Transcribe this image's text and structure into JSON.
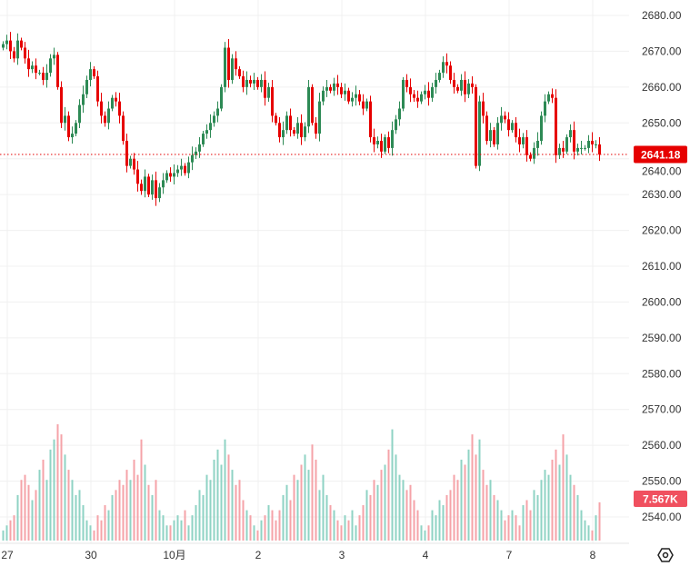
{
  "chart_data": {
    "type": "candlestick",
    "title": "",
    "y_ticks": [
      "2680.00",
      "2670.00",
      "2660.00",
      "2650.00",
      "2640.00",
      "2630.00",
      "2620.00",
      "2610.00",
      "2600.00",
      "2590.00",
      "2580.00",
      "2570.00",
      "2560.00",
      "2550.00",
      "2540.00"
    ],
    "ylim": [
      2540,
      2680
    ],
    "x_ticks": [
      {
        "label": "27",
        "bar": 1.5
      },
      {
        "label": "30",
        "bar": 24.5
      },
      {
        "label": "10月",
        "bar": 47.5
      },
      {
        "label": "2",
        "bar": 70.5
      },
      {
        "label": "3",
        "bar": 93.5
      },
      {
        "label": "4",
        "bar": 116.5
      },
      {
        "label": "7",
        "bar": 139.5
      },
      {
        "label": "8",
        "bar": 162.5
      }
    ],
    "last_price": 2641.18,
    "last_price_label": "2641.18",
    "last_volume_label": "7.567K",
    "closes": [
      2672,
      2673,
      2670,
      2668,
      2673,
      2671,
      2668,
      2665,
      2666,
      2664,
      2664,
      2662,
      2664,
      2668,
      2669,
      2660,
      2650,
      2652,
      2646,
      2647,
      2650,
      2655,
      2658,
      2662,
      2665,
      2663,
      2656,
      2652,
      2650,
      2654,
      2657,
      2656,
      2652,
      2645,
      2638,
      2640,
      2637,
      2633,
      2631,
      2635,
      2630,
      2634,
      2629,
      2632,
      2634,
      2636,
      2635,
      2636,
      2637,
      2638,
      2636,
      2639,
      2641,
      2642,
      2644,
      2647,
      2648,
      2650,
      2652,
      2654,
      2660,
      2671,
      2662,
      2668,
      2665,
      2663,
      2660,
      2662,
      2661,
      2662,
      2660,
      2662,
      2657,
      2660,
      2652,
      2650,
      2646,
      2648,
      2652,
      2648,
      2647,
      2650,
      2646,
      2649,
      2660,
      2650,
      2647,
      2656,
      2659,
      2660,
      2659,
      2661,
      2660,
      2658,
      2659,
      2656,
      2657,
      2658,
      2656,
      2654,
      2656,
      2646,
      2644,
      2645,
      2642,
      2646,
      2643,
      2648,
      2651,
      2654,
      2662,
      2660,
      2658,
      2657,
      2656,
      2658,
      2659,
      2657,
      2660,
      2662,
      2664,
      2667,
      2666,
      2662,
      2660,
      2659,
      2662,
      2658,
      2661,
      2660,
      2638,
      2656,
      2652,
      2645,
      2648,
      2644,
      2650,
      2652,
      2651,
      2648,
      2650,
      2646,
      2644,
      2646,
      2641,
      2640,
      2643,
      2645,
      2652,
      2656,
      2658,
      2657,
      2641,
      2643,
      2642,
      2646,
      2648,
      2642,
      2643,
      2643,
      2643,
      2645,
      2644,
      2644,
      2641.18
    ],
    "volumes_k": [
      2,
      3,
      4,
      5,
      9,
      12,
      13,
      11,
      8,
      10,
      14,
      16,
      12,
      18,
      20,
      23,
      21,
      17,
      14,
      12,
      9,
      10,
      7,
      4,
      3,
      2,
      5,
      4,
      7,
      6,
      9,
      10,
      12,
      11,
      14,
      12,
      16,
      13,
      20,
      15,
      11,
      9,
      12,
      6,
      5,
      3,
      3,
      4,
      5,
      4,
      6,
      3,
      5,
      7,
      10,
      9,
      13,
      12,
      16,
      18,
      15,
      20,
      17,
      14,
      11,
      12,
      8,
      6,
      5,
      3,
      2,
      4,
      5,
      7,
      6,
      4,
      6,
      9,
      11,
      8,
      13,
      12,
      15,
      17,
      14,
      19,
      16,
      10,
      13,
      9,
      7,
      6,
      4,
      3,
      5,
      4,
      6,
      3,
      5,
      7,
      10,
      9,
      12,
      11,
      14,
      15,
      18,
      22,
      17,
      13,
      12,
      10,
      11,
      8,
      6,
      3,
      2,
      3,
      6,
      5,
      8,
      7,
      9,
      10,
      13,
      12,
      16,
      15,
      18,
      21,
      17,
      20,
      14,
      11,
      12,
      9,
      8,
      6,
      4,
      5,
      6,
      5,
      3,
      7,
      8,
      6,
      10,
      9,
      12,
      14,
      13,
      16,
      18,
      15,
      21,
      17,
      13,
      11,
      9,
      6,
      4,
      3,
      2,
      5,
      7.567
    ],
    "colors": {
      "up": "#2d8a55",
      "down": "#e60000",
      "vol_up": "#8fd3c4",
      "vol_down": "#f5a3a8",
      "last_price_tag": "#e60000",
      "volume_tag": "#f0505f",
      "grid": "#f0f0f0"
    }
  },
  "settings_icon": "settings-icon"
}
